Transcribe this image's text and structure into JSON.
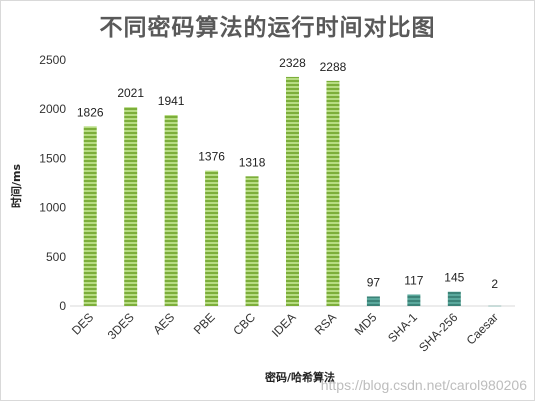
{
  "chart_data": {
    "type": "bar",
    "title": "不同密码算法的运行时间对比图",
    "xlabel": "密码/哈希算法",
    "ylabel": "时间/ms",
    "categories": [
      "DES",
      "3DES",
      "AES",
      "PBE",
      "CBC",
      "IDEA",
      "RSA",
      "MD5",
      "SHA-1",
      "SHA-256",
      "Caesar"
    ],
    "values": [
      1826,
      2021,
      1941,
      1376,
      1318,
      2328,
      2288,
      97,
      117,
      145,
      2
    ],
    "ylim": [
      0,
      2500
    ],
    "yticks": [
      0,
      500,
      1000,
      1500,
      2000,
      2500
    ],
    "grid": false,
    "legend": "none",
    "colors": {
      "symmetric": "#a9d26b",
      "symmetric_stripe": "#7cae3a",
      "hash": "#4a9a8f",
      "hash_stripe": "#3c8378"
    }
  },
  "watermark": "https://blog.csdn.net/carol980206"
}
